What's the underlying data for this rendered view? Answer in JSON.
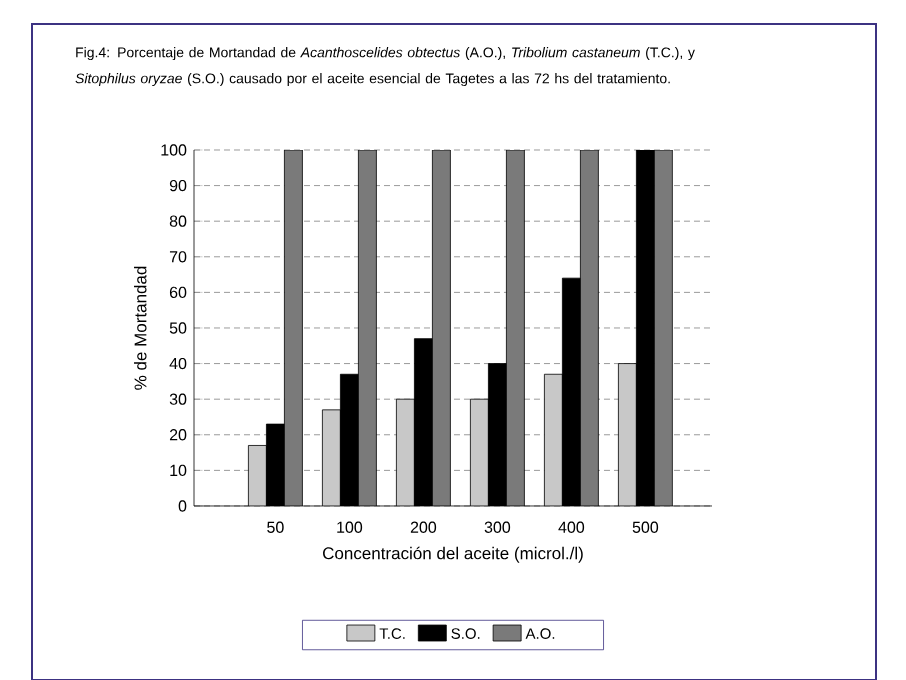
{
  "chart_data": {
    "type": "bar",
    "title": "Fig.4: Porcentaje de Mortandad de *Acanthoscelides obtectus* (A.O.), *Tribolium castaneum* (T.C.), y *Sitophilus oryzae* (S.O.) causado por el aceite esencial de Tagetes a las 72 hs del tratamiento.",
    "xlabel": "Concentración del aceite (microl./l)",
    "ylabel": "% de Mortandad",
    "categories": [
      "50",
      "100",
      "200",
      "300",
      "400",
      "500"
    ],
    "series": [
      {
        "name": "T.C.",
        "color": "#c8c8c8",
        "values": [
          17,
          27,
          30,
          30,
          37,
          40
        ]
      },
      {
        "name": "S.O.",
        "color": "#000000",
        "values": [
          23,
          37,
          47,
          40,
          64,
          100
        ]
      },
      {
        "name": "A.O.",
        "color": "#7a7a7a",
        "values": [
          100,
          100,
          100,
          100,
          100,
          100
        ]
      }
    ],
    "ylim": [
      0,
      100
    ],
    "yticks": [
      0,
      10,
      20,
      30,
      40,
      50,
      60,
      70,
      80,
      90,
      100
    ],
    "grid": "y",
    "legend": "bottom"
  }
}
